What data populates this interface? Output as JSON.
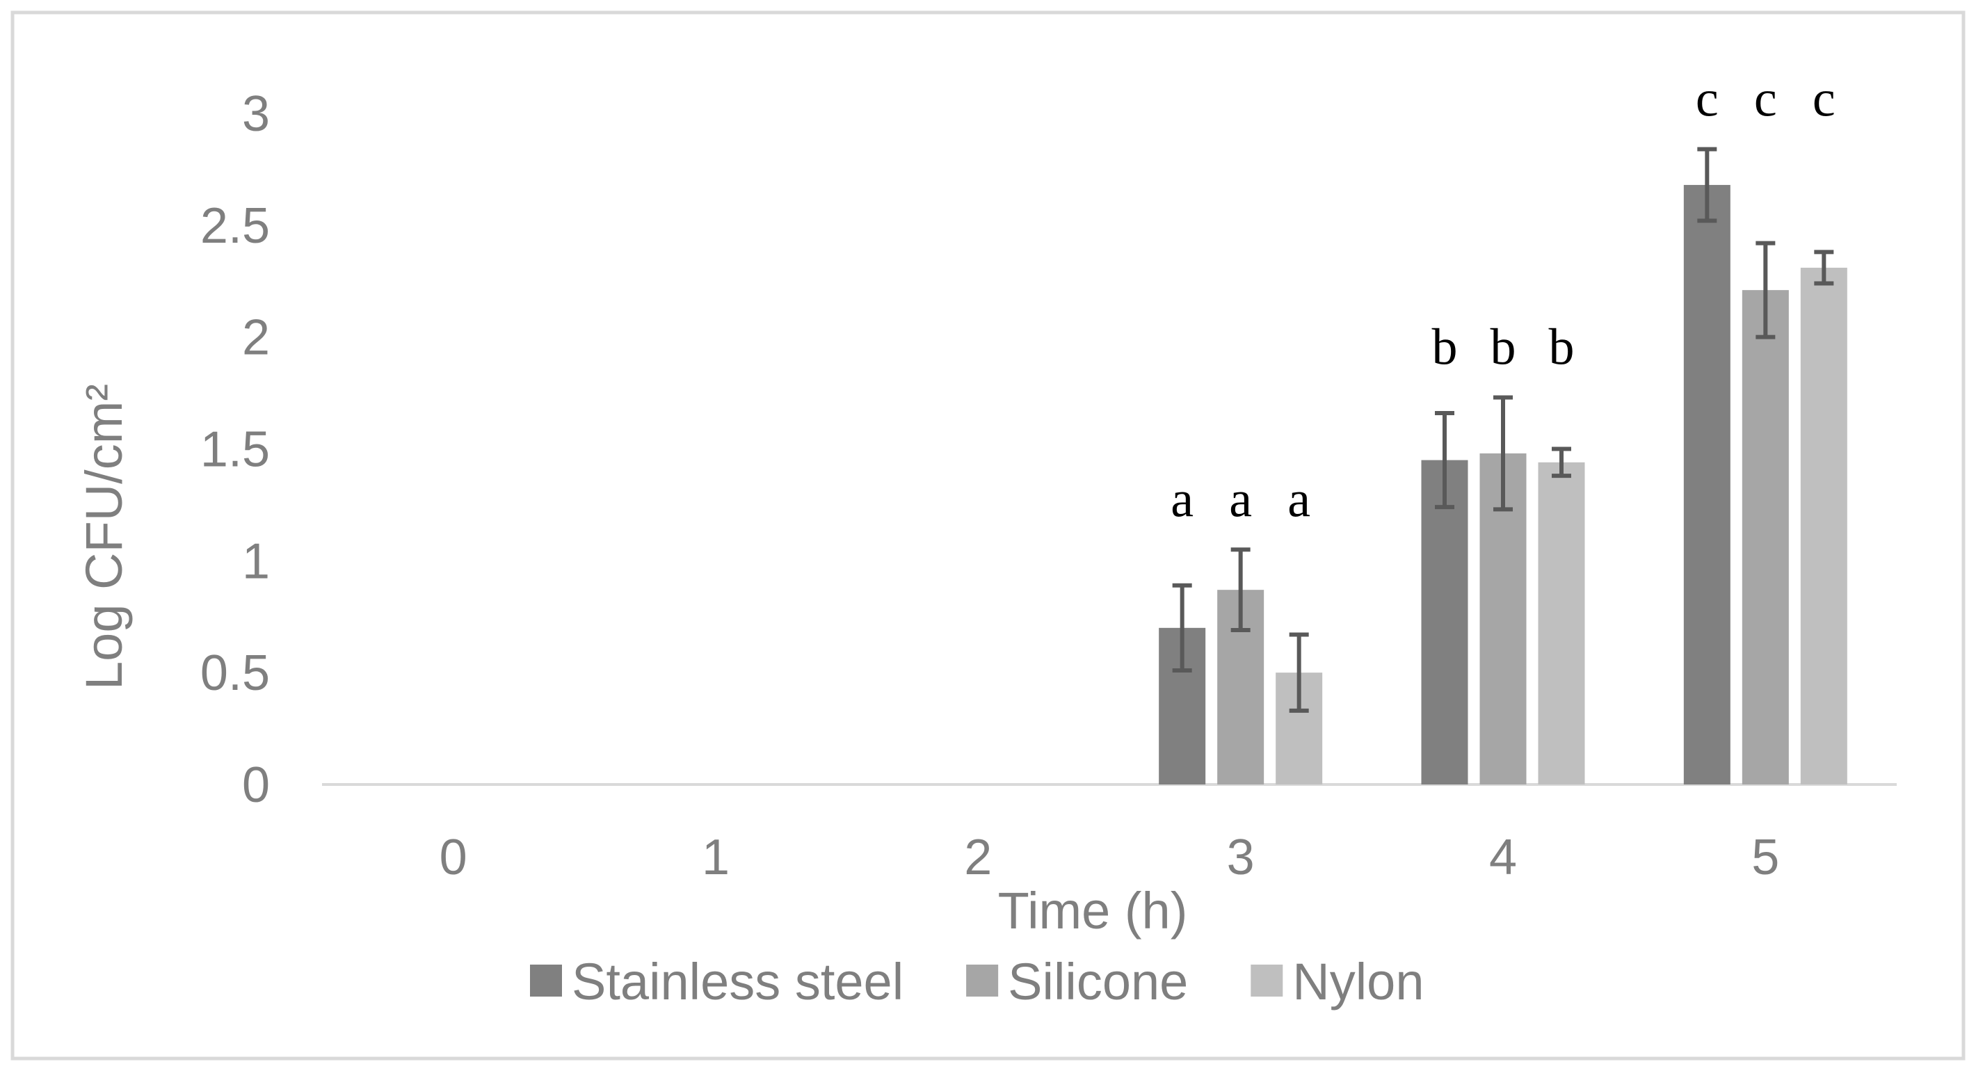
{
  "chart_data": {
    "type": "bar",
    "categories": [
      "0",
      "1",
      "2",
      "3",
      "4",
      "5"
    ],
    "series": [
      {
        "name": "Stainless steel",
        "color": "#808080",
        "values": [
          0,
          0,
          0,
          0.7,
          1.45,
          2.68
        ],
        "errors": [
          0,
          0,
          0,
          0.19,
          0.21,
          0.16
        ],
        "letters": [
          "",
          "",
          "",
          "a",
          "b",
          "c"
        ]
      },
      {
        "name": "Silicone",
        "color": "#a6a6a6",
        "values": [
          0,
          0,
          0,
          0.87,
          1.48,
          2.21
        ],
        "errors": [
          0,
          0,
          0,
          0.18,
          0.25,
          0.21
        ],
        "letters": [
          "",
          "",
          "",
          "a",
          "b",
          "c"
        ]
      },
      {
        "name": "Nylon",
        "color": "#bfbfbf",
        "values": [
          0,
          0,
          0,
          0.5,
          1.44,
          2.31
        ],
        "errors": [
          0,
          0,
          0,
          0.17,
          0.06,
          0.07
        ],
        "letters": [
          "",
          "",
          "",
          "a",
          "b",
          "c"
        ]
      }
    ],
    "xlabel": "Time (h)",
    "ylabel": "Log CFU/cm²",
    "ylim": [
      0,
      3
    ],
    "yticks": [
      "0",
      "0.5",
      "1",
      "1.5",
      "2",
      "2.5",
      "3"
    ],
    "grid": false,
    "legend_position": "bottom"
  }
}
